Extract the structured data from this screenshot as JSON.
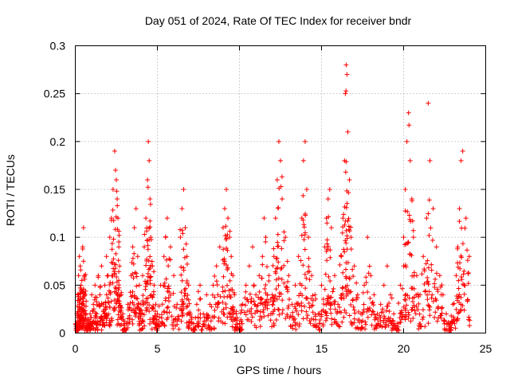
{
  "chart_data": {
    "type": "scatter",
    "title": "Day 051 of 2024, Rate Of TEC Index for receiver bndr",
    "xlabel": "GPS time / hours",
    "ylabel": "ROTI / TECUs",
    "xlim": [
      0,
      25
    ],
    "ylim": [
      0,
      0.3
    ],
    "x_ticks": [
      "0",
      "5",
      "10",
      "15",
      "20",
      "25"
    ],
    "y_ticks": [
      "0",
      "0.05",
      "0.1",
      "0.15",
      "0.2",
      "0.25",
      "0.3"
    ],
    "x_tick_values": [
      0,
      5,
      10,
      15,
      20,
      25
    ],
    "y_tick_values": [
      0,
      0.05,
      0.1,
      0.15,
      0.2,
      0.25,
      0.3
    ],
    "grid": true,
    "marker": "+",
    "color": "#ff0000",
    "series": [
      {
        "x": [
          0.05,
          0.1,
          0.15,
          0.2,
          0.25,
          0.3,
          0.35,
          0.4,
          0.45,
          0.5,
          0.55,
          0.6,
          0.65,
          0.7,
          0.3,
          0.35,
          0.4,
          0.5,
          0.8,
          0.9,
          1.0,
          1.1,
          1.2,
          1.3,
          1.4,
          1.5,
          1.6,
          1.7,
          1.8,
          1.9,
          2.0,
          2.1,
          2.2,
          2.3,
          2.4,
          2.45,
          2.5,
          2.55,
          2.6,
          2.65,
          2.7,
          2.8,
          2.9,
          3.0,
          3.2,
          3.4,
          3.5,
          3.6,
          3.7,
          3.8,
          3.9,
          4.0,
          4.1,
          4.2,
          4.3,
          4.4,
          4.45,
          4.5,
          4.55,
          4.6,
          4.7,
          4.8,
          4.9,
          5.0,
          5.2,
          5.4,
          5.5,
          5.6,
          5.8,
          6.0,
          6.2,
          6.4,
          6.5,
          6.6,
          6.7,
          6.8,
          6.9,
          7.0,
          7.2,
          7.4,
          7.6,
          7.8,
          8.0,
          8.2,
          8.4,
          8.6,
          8.8,
          9.0,
          9.1,
          9.2,
          9.3,
          9.4,
          9.5,
          9.6,
          9.7,
          9.8,
          10.0,
          10.2,
          10.4,
          10.6,
          10.8,
          11.0,
          11.2,
          11.4,
          11.5,
          11.6,
          11.8,
          12.0,
          12.1,
          12.2,
          12.3,
          12.4,
          12.5,
          12.6,
          12.8,
          13.0,
          13.2,
          13.4,
          13.6,
          13.8,
          13.9,
          14.0,
          14.1,
          14.2,
          14.4,
          14.6,
          14.8,
          15.0,
          15.2,
          15.3,
          15.4,
          15.5,
          15.6,
          15.8,
          16.0,
          16.2,
          16.3,
          16.4,
          16.45,
          16.5,
          16.55,
          16.6,
          16.7,
          16.8,
          17.0,
          17.2,
          17.4,
          17.6,
          17.8,
          18.0,
          18.2,
          18.4,
          18.6,
          18.8,
          19.0,
          19.2,
          19.4,
          19.6,
          19.8,
          20.0,
          20.1,
          20.2,
          20.3,
          20.4,
          20.5,
          20.6,
          20.8,
          21.0,
          21.2,
          21.4,
          21.5,
          21.6,
          21.8,
          22.0,
          22.2,
          22.4,
          22.6,
          22.8,
          23.0,
          23.2,
          23.3,
          23.4,
          23.5,
          23.6,
          23.8,
          24.0
        ],
        "y": [
          0.005,
          0.02,
          0.04,
          0.06,
          0.08,
          0.07,
          0.05,
          0.03,
          0.09,
          0.11,
          0.06,
          0.04,
          0.02,
          0.01,
          0.035,
          0.045,
          0.055,
          0.075,
          0.01,
          0.02,
          0.04,
          0.03,
          0.05,
          0.02,
          0.06,
          0.04,
          0.07,
          0.03,
          0.05,
          0.08,
          0.06,
          0.1,
          0.12,
          0.15,
          0.19,
          0.17,
          0.16,
          0.14,
          0.12,
          0.09,
          0.07,
          0.04,
          0.02,
          0.01,
          0.03,
          0.06,
          0.09,
          0.11,
          0.13,
          0.08,
          0.05,
          0.03,
          0.06,
          0.09,
          0.12,
          0.16,
          0.2,
          0.18,
          0.14,
          0.1,
          0.07,
          0.05,
          0.03,
          0.02,
          0.05,
          0.08,
          0.1,
          0.12,
          0.09,
          0.06,
          0.03,
          0.1,
          0.13,
          0.15,
          0.11,
          0.08,
          0.05,
          0.02,
          0.01,
          0.03,
          0.05,
          0.02,
          0.04,
          0.03,
          0.05,
          0.07,
          0.09,
          0.11,
          0.13,
          0.15,
          0.12,
          0.1,
          0.08,
          0.06,
          0.04,
          0.02,
          0.01,
          0.03,
          0.05,
          0.07,
          0.09,
          0.04,
          0.06,
          0.08,
          0.12,
          0.1,
          0.06,
          0.04,
          0.08,
          0.12,
          0.16,
          0.2,
          0.18,
          0.14,
          0.1,
          0.06,
          0.03,
          0.05,
          0.08,
          0.12,
          0.18,
          0.2,
          0.15,
          0.1,
          0.06,
          0.04,
          0.02,
          0.05,
          0.09,
          0.12,
          0.14,
          0.15,
          0.11,
          0.06,
          0.03,
          0.08,
          0.12,
          0.18,
          0.25,
          0.28,
          0.27,
          0.21,
          0.16,
          0.1,
          0.07,
          0.04,
          0.02,
          0.05,
          0.1,
          0.06,
          0.04,
          0.02,
          0.03,
          0.05,
          0.07,
          0.04,
          0.02,
          0.01,
          0.05,
          0.1,
          0.15,
          0.2,
          0.23,
          0.18,
          0.14,
          0.1,
          0.06,
          0.04,
          0.08,
          0.12,
          0.24,
          0.18,
          0.13,
          0.09,
          0.06,
          0.04,
          0.02,
          0.01,
          0.03,
          0.06,
          0.09,
          0.13,
          0.18,
          0.19,
          0.12,
          0.08
        ],
        "extra_points_per_x": 8
      }
    ]
  }
}
